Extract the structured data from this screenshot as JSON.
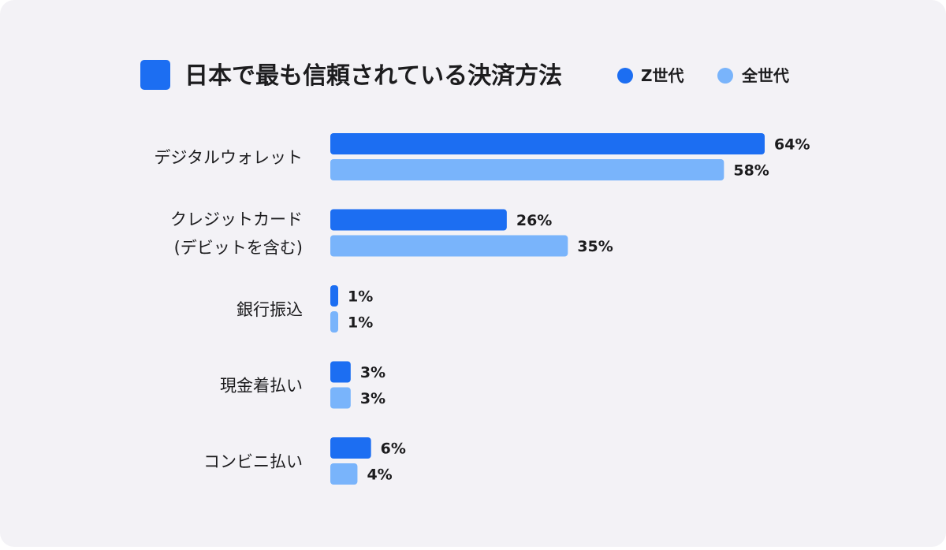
{
  "chart_data": {
    "type": "bar",
    "orientation": "horizontal",
    "title": "日本で最も信頼されている決済方法",
    "categories": [
      [
        "デジタルウォレット"
      ],
      [
        "クレジットカード",
        "(デビットを含む)"
      ],
      [
        "銀行振込"
      ],
      [
        "現金着払い"
      ],
      [
        "コンビニ払い"
      ]
    ],
    "series": [
      {
        "name": "Z世代",
        "values": [
          64,
          26,
          1,
          3,
          6
        ],
        "labels": [
          "64%",
          "26%",
          "1%",
          "3%",
          "6%"
        ]
      },
      {
        "name": "全世代",
        "values": [
          58,
          35,
          1,
          3,
          4
        ],
        "labels": [
          "58%",
          "35%",
          "1%",
          "3%",
          "4%"
        ]
      }
    ],
    "xlim": [
      0,
      64
    ],
    "grid": false,
    "legend": "top-right",
    "xlabel": "",
    "ylabel": ""
  },
  "colors": {
    "background": "#f3f2f6",
    "title_marker": "#1c6ef2",
    "series": [
      "#1c6ef2",
      "#79b4fb"
    ],
    "text": "#1c1c1e"
  }
}
